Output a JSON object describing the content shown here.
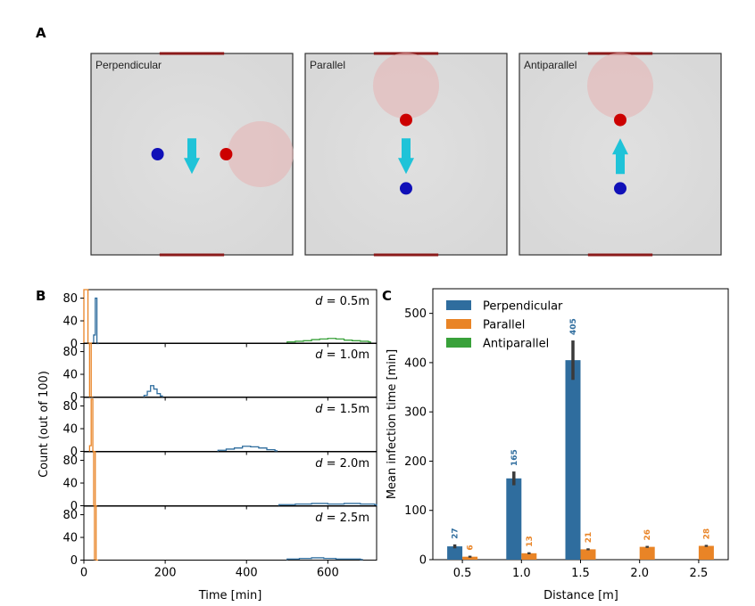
{
  "figure": {
    "panel_a": {
      "letter": "A",
      "scenes": [
        {
          "label": "Perpendicular",
          "arrow": "down",
          "person": [
            0.33,
            0.5
          ],
          "source": [
            0.67,
            0.5
          ],
          "cloud": [
            0.84,
            0.5
          ]
        },
        {
          "label": "Parallel",
          "arrow": "down",
          "person": [
            0.5,
            0.67
          ],
          "source": [
            0.5,
            0.33
          ],
          "cloud": [
            0.5,
            0.16
          ]
        },
        {
          "label": "Antiparallel",
          "arrow": "up",
          "person": [
            0.5,
            0.67
          ],
          "source": [
            0.5,
            0.33
          ],
          "cloud": [
            0.5,
            0.16
          ]
        }
      ]
    },
    "panel_b": {
      "letter": "B"
    },
    "panel_c": {
      "letter": "C"
    }
  },
  "colors": {
    "perpendicular": "#2f6d9e",
    "parallel": "#e98426",
    "antiparallel": "#39a13a",
    "room_fill": "#dcdcdc",
    "window": "#8b1a1a",
    "person": "#1010b8",
    "source": "#cc0000",
    "cloud": "#e6b6b6",
    "arrow": "#1fc3d8",
    "errorbar": "#3a3a3a"
  },
  "chart_data": [
    {
      "type": "histogram",
      "panel": "B",
      "ylabel": "Count (out of 100)",
      "xlabel": "Time [min]",
      "xlim": [
        0,
        720
      ],
      "ylim": [
        0,
        95
      ],
      "x_ticks": [
        0,
        200,
        400,
        600
      ],
      "y_ticks": [
        0,
        40,
        80
      ],
      "subplots": [
        {
          "label_var": "d",
          "label_value": " = 0.5m",
          "series": [
            {
              "color_key": "parallel",
              "x": [
                0,
                5,
                10
              ],
              "values": [
                95,
                95,
                0
              ]
            },
            {
              "color_key": "perpendicular",
              "x": [
                24,
                28,
                32
              ],
              "values": [
                15,
                80,
                0
              ]
            },
            {
              "color_key": "antiparallel",
              "x": [
                500,
                520,
                540,
                560,
                580,
                600,
                620,
                640,
                660,
                680,
                700
              ],
              "values": [
                3,
                4,
                5,
                7,
                8,
                9,
                8,
                6,
                5,
                4,
                3
              ]
            }
          ]
        },
        {
          "label_var": "d",
          "label_value": " = 1.0m",
          "series": [
            {
              "color_key": "parallel",
              "x": [
                14,
                18
              ],
              "values": [
                95,
                0
              ]
            },
            {
              "color_key": "perpendicular",
              "x": [
                148,
                156,
                164,
                172,
                180,
                188
              ],
              "values": [
                3,
                10,
                20,
                14,
                6,
                2
              ]
            }
          ]
        },
        {
          "label_var": "d",
          "label_value": " = 1.5m",
          "series": [
            {
              "color_key": "parallel",
              "x": [
                14,
                18,
                22
              ],
              "values": [
                10,
                92,
                0
              ]
            },
            {
              "color_key": "perpendicular",
              "x": [
                330,
                350,
                370,
                390,
                410,
                430,
                450,
                470
              ],
              "values": [
                2,
                4,
                6,
                9,
                8,
                6,
                3,
                1
              ]
            }
          ]
        },
        {
          "label_var": "d",
          "label_value": " = 2.0m",
          "series": [
            {
              "color_key": "parallel",
              "x": [
                24,
                28
              ],
              "values": [
                95,
                0
              ]
            },
            {
              "color_key": "perpendicular",
              "x": [
                480,
                520,
                560,
                600,
                640,
                680,
                715
              ],
              "values": [
                2,
                3,
                4,
                3,
                4,
                3,
                2
              ]
            }
          ]
        },
        {
          "label_var": "d",
          "label_value": " = 2.5m",
          "series": [
            {
              "color_key": "parallel",
              "x": [
                26,
                30
              ],
              "values": [
                95,
                0
              ]
            },
            {
              "color_key": "perpendicular",
              "x": [
                500,
                530,
                560,
                590,
                620,
                650,
                680
              ],
              "values": [
                2,
                3,
                4,
                3,
                2,
                2,
                1
              ]
            }
          ]
        }
      ]
    },
    {
      "type": "bar",
      "panel": "C",
      "ylabel": "Mean infection time [min]",
      "xlabel": "Distance [m]",
      "categories": [
        "0.5",
        "1.0",
        "1.5",
        "2.0",
        "2.5"
      ],
      "ylim": [
        0,
        550
      ],
      "y_ticks": [
        0,
        100,
        200,
        300,
        400,
        500
      ],
      "legend": [
        "Perpendicular",
        "Parallel",
        "Antiparallel"
      ],
      "legend_position": "top-left",
      "series": [
        {
          "name": "Perpendicular",
          "color_key": "perpendicular",
          "values": [
            27,
            165,
            405,
            null,
            null
          ],
          "errors": [
            4,
            14,
            40,
            null,
            null
          ],
          "labels": [
            "27",
            "165",
            "405",
            "",
            ""
          ]
        },
        {
          "name": "Parallel",
          "color_key": "parallel",
          "values": [
            6,
            13,
            21,
            26,
            28
          ],
          "errors": [
            2,
            2,
            2,
            2,
            2
          ],
          "labels": [
            "6",
            "13",
            "21",
            "26",
            "28"
          ]
        },
        {
          "name": "Antiparallel",
          "color_key": "antiparallel",
          "values": [
            null,
            null,
            null,
            null,
            null
          ],
          "errors": [
            null,
            null,
            null,
            null,
            null
          ],
          "labels": [
            "",
            "",
            "",
            "",
            ""
          ]
        }
      ]
    }
  ]
}
